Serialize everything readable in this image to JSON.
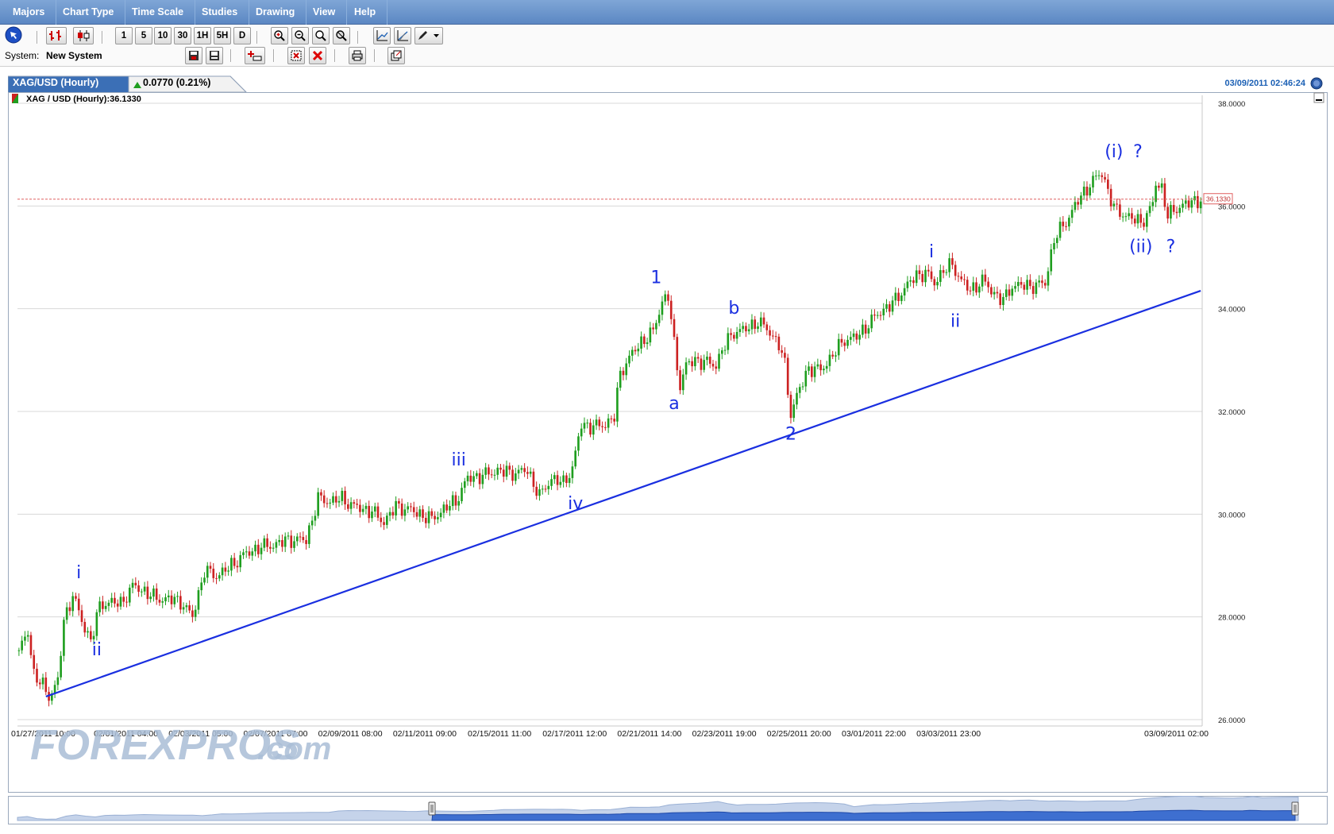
{
  "menubar": {
    "items": [
      "Majors",
      "Chart Type",
      "Time Scale",
      "Studies",
      "Drawing",
      "View",
      "Help"
    ]
  },
  "toolbar": {
    "timeframes": [
      "1",
      "5",
      "10",
      "30",
      "1H",
      "5H",
      "D"
    ],
    "icons": [
      "pointer-icon",
      "bar-chart-icon",
      "candlestick-icon",
      "zoom-in-icon",
      "zoom-out-icon",
      "zoom-reset-icon",
      "zoom-area-icon",
      "line-tool-icon",
      "trend-tool-icon",
      "pencil-icon",
      "dropdown-arrow-icon"
    ]
  },
  "system": {
    "label": "System:",
    "value": "New System",
    "icons": [
      "save-system-icon",
      "load-system-icon",
      "add-indicator-icon",
      "remove-indicator-icon",
      "delete-icon",
      "print-icon",
      "detach-icon"
    ]
  },
  "chart_tab": {
    "title": "XAG/USD (Hourly)",
    "change": "0.0770 (0.21%)",
    "timestamp": "03/09/2011 02:46:24"
  },
  "colors": {
    "up": "#1f9e1f",
    "down": "#cc2222",
    "trendline": "#1a2fe0",
    "wave_label": "#1a2fe0",
    "tab_bg": "#3b6fb6",
    "menubar": "#5b87c3"
  },
  "chart_data": {
    "type": "candlestick",
    "legend": "XAG / USD (Hourly):36.1330",
    "ylim": [
      26,
      38
    ],
    "yticks": [
      "38.0000",
      "36.0000",
      "34.0000",
      "32.0000",
      "30.0000",
      "28.0000",
      "26.0000"
    ],
    "xticks": [
      "01/27/2011 10:00",
      "02/01/2011 04:00",
      "02/03/2011 05:00",
      "02/07/2011 07:00",
      "02/09/2011 08:00",
      "02/11/2011 09:00",
      "02/15/2011 11:00",
      "02/17/2011 12:00",
      "02/21/2011 14:00",
      "02/23/2011 19:00",
      "02/25/2011 20:00",
      "03/01/2011 22:00",
      "03/03/2011 23:00",
      "03/09/2011 02:00"
    ],
    "xtick_index": [
      0,
      25,
      50,
      75,
      100,
      125,
      150,
      175,
      200,
      225,
      250,
      275,
      300,
      348
    ],
    "current_price": 36.133,
    "current_price_label": "36.1330",
    "price_path": [
      [
        0,
        27.35
      ],
      [
        3,
        27.7
      ],
      [
        5,
        26.9
      ],
      [
        8,
        26.65
      ],
      [
        10,
        26.45
      ],
      [
        13,
        26.75
      ],
      [
        15,
        27.9
      ],
      [
        18,
        28.45
      ],
      [
        21,
        27.9
      ],
      [
        24,
        27.55
      ],
      [
        27,
        28.2
      ],
      [
        30,
        28.3
      ],
      [
        34,
        28.25
      ],
      [
        38,
        28.6
      ],
      [
        42,
        28.5
      ],
      [
        46,
        28.35
      ],
      [
        50,
        28.35
      ],
      [
        54,
        28.3
      ],
      [
        58,
        28.0
      ],
      [
        62,
        28.9
      ],
      [
        66,
        28.8
      ],
      [
        70,
        28.95
      ],
      [
        75,
        29.2
      ],
      [
        80,
        29.35
      ],
      [
        85,
        29.4
      ],
      [
        90,
        29.5
      ],
      [
        96,
        29.5
      ],
      [
        100,
        30.3
      ],
      [
        104,
        30.25
      ],
      [
        108,
        30.3
      ],
      [
        112,
        30.15
      ],
      [
        118,
        30.05
      ],
      [
        122,
        29.85
      ],
      [
        126,
        30.15
      ],
      [
        130,
        30.1
      ],
      [
        134,
        30.0
      ],
      [
        138,
        29.9
      ],
      [
        142,
        30.1
      ],
      [
        146,
        30.25
      ],
      [
        150,
        30.7
      ],
      [
        155,
        30.75
      ],
      [
        160,
        30.85
      ],
      [
        165,
        30.8
      ],
      [
        170,
        30.85
      ],
      [
        174,
        30.35
      ],
      [
        178,
        30.7
      ],
      [
        182,
        30.6
      ],
      [
        185,
        30.9
      ],
      [
        188,
        31.75
      ],
      [
        192,
        31.7
      ],
      [
        196,
        31.75
      ],
      [
        199,
        31.9
      ],
      [
        201,
        32.75
      ],
      [
        204,
        33.05
      ],
      [
        208,
        33.35
      ],
      [
        212,
        33.55
      ],
      [
        215,
        34.15
      ],
      [
        217,
        34.25
      ],
      [
        219,
        33.3
      ],
      [
        221,
        32.5
      ],
      [
        223,
        32.9
      ],
      [
        226,
        33.0
      ],
      [
        230,
        32.95
      ],
      [
        233,
        32.9
      ],
      [
        235,
        33.2
      ],
      [
        239,
        33.55
      ],
      [
        243,
        33.6
      ],
      [
        247,
        33.75
      ],
      [
        251,
        33.55
      ],
      [
        254,
        33.3
      ],
      [
        256,
        32.9
      ],
      [
        258,
        31.95
      ],
      [
        260,
        32.3
      ],
      [
        264,
        32.85
      ],
      [
        268,
        32.8
      ],
      [
        272,
        33.1
      ],
      [
        276,
        33.4
      ],
      [
        280,
        33.45
      ],
      [
        284,
        33.7
      ],
      [
        288,
        33.95
      ],
      [
        292,
        34.1
      ],
      [
        296,
        34.4
      ],
      [
        300,
        34.65
      ],
      [
        303,
        34.7
      ],
      [
        306,
        34.5
      ],
      [
        309,
        34.75
      ],
      [
        312,
        34.85
      ],
      [
        315,
        34.55
      ],
      [
        318,
        34.35
      ],
      [
        322,
        34.55
      ],
      [
        326,
        34.3
      ],
      [
        329,
        34.15
      ],
      [
        332,
        34.45
      ],
      [
        336,
        34.45
      ],
      [
        340,
        34.45
      ],
      [
        343,
        34.5
      ],
      [
        346,
        35.35
      ],
      [
        350,
        35.7
      ],
      [
        354,
        36.1
      ],
      [
        357,
        36.35
      ],
      [
        360,
        36.55
      ],
      [
        362,
        36.65
      ],
      [
        364,
        36.3
      ],
      [
        366,
        35.95
      ],
      [
        369,
        35.85
      ],
      [
        372,
        35.75
      ],
      [
        375,
        35.7
      ],
      [
        377,
        35.8
      ],
      [
        379,
        36.05
      ],
      [
        380,
        36.45
      ],
      [
        382,
        36.35
      ],
      [
        384,
        35.8
      ],
      [
        386,
        35.9
      ],
      [
        388,
        36.0
      ],
      [
        391,
        36.05
      ],
      [
        395,
        36.13
      ]
    ],
    "trendline": [
      [
        9,
        26.45
      ],
      [
        395,
        34.35
      ]
    ],
    "wave_labels": [
      {
        "text": "i",
        "index": 20,
        "price": 28.75
      },
      {
        "text": "ii",
        "index": 26,
        "price": 27.25
      },
      {
        "text": "iii",
        "index": 147,
        "price": 30.95
      },
      {
        "text": "iv",
        "index": 186,
        "price": 30.1
      },
      {
        "text": "1",
        "index": 213,
        "price": 34.5
      },
      {
        "text": "a",
        "index": 219,
        "price": 32.05
      },
      {
        "text": "b",
        "index": 239,
        "price": 33.9
      },
      {
        "text": "2",
        "index": 258,
        "price": 31.45
      },
      {
        "text": "i",
        "index": 305,
        "price": 35.0
      },
      {
        "text": "ii",
        "index": 313,
        "price": 33.65
      },
      {
        "text": "(i)",
        "index": 366,
        "price": 36.95
      },
      {
        "text": "?",
        "index": 374,
        "price": 36.95
      },
      {
        "text": "(ii)",
        "index": 375,
        "price": 35.1
      },
      {
        "text": "?",
        "index": 385,
        "price": 35.1
      }
    ]
  },
  "watermark": {
    "brand": "FOREXPROS",
    "suffix": ".com"
  }
}
